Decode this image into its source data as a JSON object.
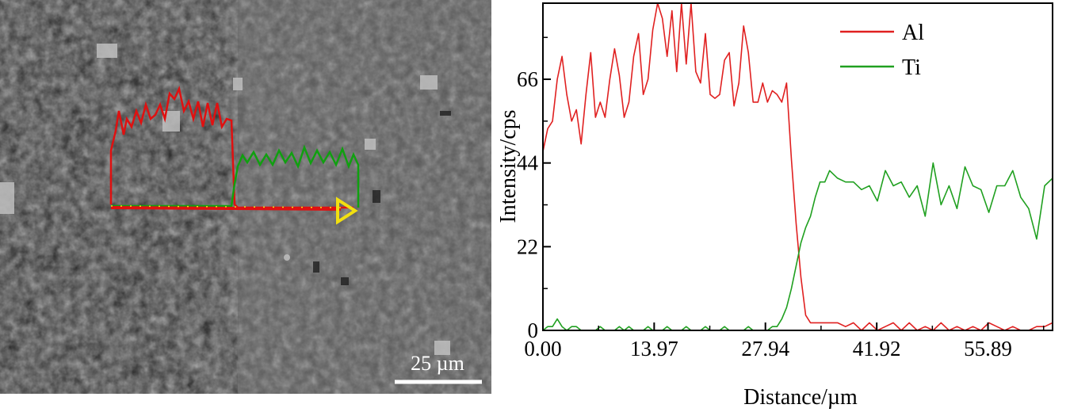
{
  "micrograph": {
    "scale_bar_label": "25 µm",
    "colors": {
      "al_overlay": "#e01010",
      "ti_overlay": "#10a010",
      "arrow": "#f2e010"
    }
  },
  "chart_data": {
    "type": "line",
    "xlabel": "Distance/µm",
    "ylabel": "Intensity/cps",
    "xlim": [
      0,
      64
    ],
    "ylim": [
      0,
      86
    ],
    "x_ticks": [
      "0.00",
      "13.97",
      "27.94",
      "41.92",
      "55.89"
    ],
    "x_tick_values": [
      0.0,
      13.97,
      27.94,
      41.92,
      55.89
    ],
    "y_ticks": [
      "0",
      "22",
      "44",
      "66"
    ],
    "y_tick_values": [
      0,
      22,
      44,
      66
    ],
    "legend_position": "top-right",
    "grid": false,
    "series": [
      {
        "name": "Al",
        "color": "#e02020",
        "x": [
          0.0,
          0.6,
          1.2,
          1.8,
          2.4,
          3.0,
          3.6,
          4.2,
          4.8,
          5.4,
          6.0,
          6.6,
          7.2,
          7.8,
          8.4,
          9.0,
          9.6,
          10.2,
          10.8,
          11.4,
          12.0,
          12.6,
          13.2,
          13.8,
          14.4,
          15.0,
          15.6,
          16.2,
          16.8,
          17.4,
          18.0,
          18.6,
          19.2,
          19.8,
          20.4,
          21.0,
          21.6,
          22.2,
          22.8,
          23.4,
          24.0,
          24.6,
          25.2,
          25.8,
          26.4,
          27.0,
          27.6,
          28.2,
          28.8,
          29.4,
          30.0,
          30.6,
          31.2,
          31.8,
          32.4,
          33.0,
          33.6,
          34.2,
          34.8,
          35.4,
          36.0,
          37.0,
          38.0,
          39.0,
          40.0,
          41.0,
          42.0,
          43.0,
          44.0,
          45.0,
          46.0,
          47.0,
          48.0,
          49.0,
          50.0,
          51.0,
          52.0,
          53.0,
          54.0,
          55.0,
          56.0,
          57.0,
          58.0,
          59.0,
          60.0,
          61.0,
          62.0,
          63.0,
          64.0
        ],
        "values": [
          47,
          53,
          55,
          66,
          72,
          62,
          55,
          58,
          49,
          62,
          73,
          56,
          60,
          56,
          66,
          74,
          67,
          56,
          60,
          72,
          78,
          62,
          66,
          79,
          86,
          82,
          72,
          84,
          68,
          86,
          70,
          86,
          68,
          65,
          78,
          62,
          61,
          62,
          71,
          73,
          59,
          65,
          80,
          73,
          60,
          60,
          65,
          60,
          63,
          62,
          60,
          65,
          45,
          28,
          14,
          4,
          2,
          2,
          2,
          2,
          2,
          2,
          1,
          2,
          0,
          2,
          0,
          1,
          2,
          0,
          2,
          0,
          1,
          0,
          2,
          0,
          1,
          0,
          1,
          0,
          2,
          1,
          0,
          1,
          0,
          0,
          1,
          1,
          2
        ],
        "line_width": 1.6
      },
      {
        "name": "Ti",
        "color": "#20a020",
        "x": [
          0.0,
          0.6,
          1.2,
          1.8,
          2.4,
          3.0,
          3.6,
          4.2,
          4.8,
          5.4,
          6.0,
          6.6,
          7.2,
          7.8,
          8.4,
          9.0,
          9.6,
          10.2,
          10.8,
          11.4,
          12.0,
          12.6,
          13.2,
          13.8,
          14.4,
          15.0,
          15.6,
          16.2,
          16.8,
          17.4,
          18.0,
          18.6,
          19.2,
          19.8,
          20.4,
          21.0,
          21.6,
          22.2,
          22.8,
          23.4,
          24.0,
          24.6,
          25.2,
          25.8,
          26.4,
          27.0,
          27.6,
          28.2,
          28.8,
          29.4,
          30.0,
          30.6,
          31.2,
          31.8,
          32.4,
          33.0,
          33.6,
          34.2,
          34.8,
          35.4,
          36.0,
          37.0,
          38.0,
          39.0,
          40.0,
          41.0,
          42.0,
          43.0,
          44.0,
          45.0,
          46.0,
          47.0,
          48.0,
          49.0,
          50.0,
          51.0,
          52.0,
          53.0,
          54.0,
          55.0,
          56.0,
          57.0,
          58.0,
          59.0,
          60.0,
          61.0,
          62.0,
          63.0,
          64.0
        ],
        "values": [
          0,
          1,
          1,
          3,
          1,
          0,
          1,
          1,
          0,
          0,
          0,
          0,
          1,
          0,
          0,
          0,
          1,
          0,
          1,
          0,
          0,
          0,
          1,
          0,
          0,
          0,
          1,
          0,
          0,
          0,
          1,
          0,
          0,
          0,
          1,
          0,
          0,
          0,
          1,
          0,
          0,
          0,
          0,
          1,
          0,
          0,
          0,
          0,
          1,
          1,
          3,
          6,
          11,
          17,
          23,
          27,
          30,
          35,
          39,
          39,
          42,
          40,
          39,
          39,
          37,
          38,
          34,
          42,
          38,
          39,
          35,
          38,
          30,
          44,
          33,
          38,
          32,
          43,
          38,
          37,
          31,
          38,
          38,
          42,
          35,
          32,
          24,
          38,
          40
        ],
        "line_width": 1.6
      }
    ]
  }
}
